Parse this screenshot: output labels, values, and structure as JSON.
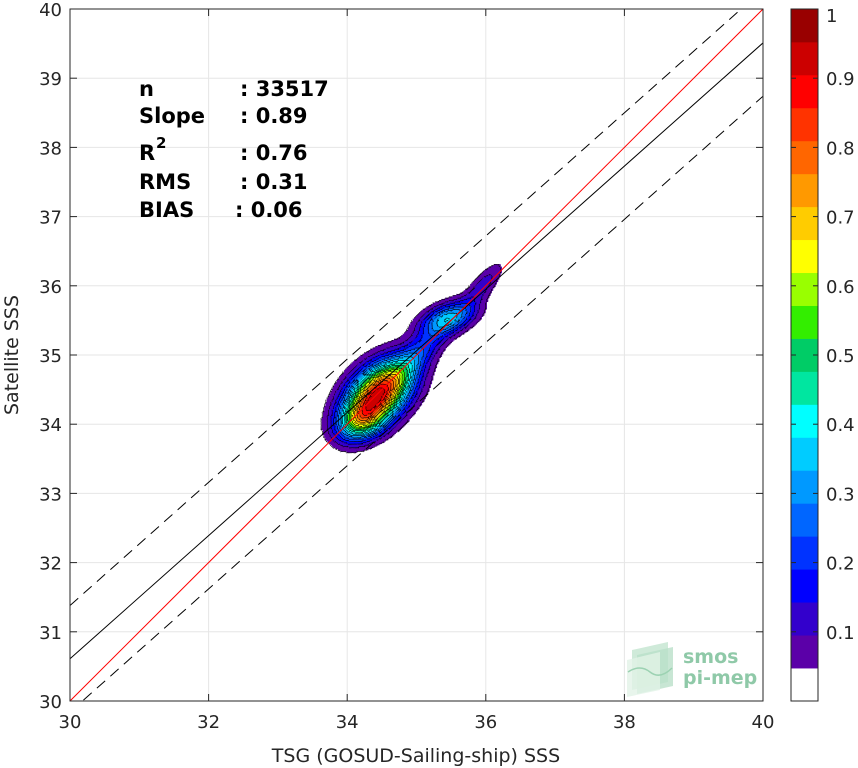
{
  "chart_data": {
    "type": "heatmap",
    "subtype": "density-contour-scatter",
    "xlabel": "TSG (GOSUD-Sailing-ship) SSS",
    "ylabel": "Satellite SSS",
    "xlim": [
      30,
      40
    ],
    "ylim": [
      30,
      40
    ],
    "x_ticks": [
      "30",
      "32",
      "34",
      "36",
      "38",
      "40"
    ],
    "y_ticks": [
      "30",
      "31",
      "32",
      "33",
      "34",
      "35",
      "36",
      "37",
      "38",
      "39",
      "40"
    ],
    "grid": true,
    "stats": [
      {
        "label": "n",
        "value": ": 33517"
      },
      {
        "label": "Slope",
        "value": ": 0.89"
      },
      {
        "label": "R",
        "sup": "2",
        "value": ": 0.76"
      },
      {
        "label": "RMS",
        "value": ": 0.31"
      },
      {
        "label": "BIAS",
        "value": ": 0.06"
      }
    ],
    "lines": {
      "identity": {
        "slope": 1,
        "intercept": 0,
        "color": "#ff0000"
      },
      "regression": {
        "slope": 0.89,
        "intercept": 3.91,
        "color": "#000000"
      },
      "upper_bound": {
        "slope": 0.89,
        "intercept": 4.68,
        "style": "dashed"
      },
      "lower_bound": {
        "slope": 0.89,
        "intercept": 3.14,
        "style": "dashed"
      }
    },
    "density_blobs": [
      {
        "cx": 34.45,
        "cy": 34.45,
        "sx": 0.38,
        "sy": 0.24,
        "angle_deg": 43,
        "weight": 1.0
      },
      {
        "cx": 35.45,
        "cy": 35.53,
        "sx": 0.28,
        "sy": 0.14,
        "angle_deg": 20,
        "weight": 0.38
      },
      {
        "cx": 35.0,
        "cy": 35.0,
        "sx": 0.45,
        "sy": 0.14,
        "angle_deg": 45,
        "weight": 0.22
      },
      {
        "cx": 35.95,
        "cy": 36.0,
        "sx": 0.28,
        "sy": 0.1,
        "angle_deg": 50,
        "weight": 0.14
      },
      {
        "cx": 34.2,
        "cy": 34.05,
        "sx": 0.25,
        "sy": 0.18,
        "angle_deg": 30,
        "weight": 0.45
      }
    ],
    "contour_levels": [
      0.05,
      0.1,
      0.15,
      0.2,
      0.25,
      0.3,
      0.35,
      0.4,
      0.45,
      0.5,
      0.55,
      0.6,
      0.65,
      0.7,
      0.75,
      0.8,
      0.85,
      0.9,
      0.95
    ],
    "colorbar": {
      "ticks": [
        "0.1",
        "0.2",
        "0.3",
        "0.4",
        "0.5",
        "0.6",
        "0.7",
        "0.8",
        "0.9",
        "1"
      ],
      "range": [
        0,
        1
      ],
      "colors": [
        "#ffffff",
        "#5b00a8",
        "#3300cc",
        "#0000ff",
        "#0033ff",
        "#0066ff",
        "#0099ff",
        "#00ccff",
        "#00ffff",
        "#00e6a0",
        "#00cc66",
        "#33ee00",
        "#99ff00",
        "#ffff00",
        "#ffcc00",
        "#ff9900",
        "#ff6600",
        "#ff3300",
        "#ff0000",
        "#cc0000",
        "#990000"
      ]
    },
    "logo": {
      "line1": "smos",
      "line2": "pi-mep"
    }
  }
}
